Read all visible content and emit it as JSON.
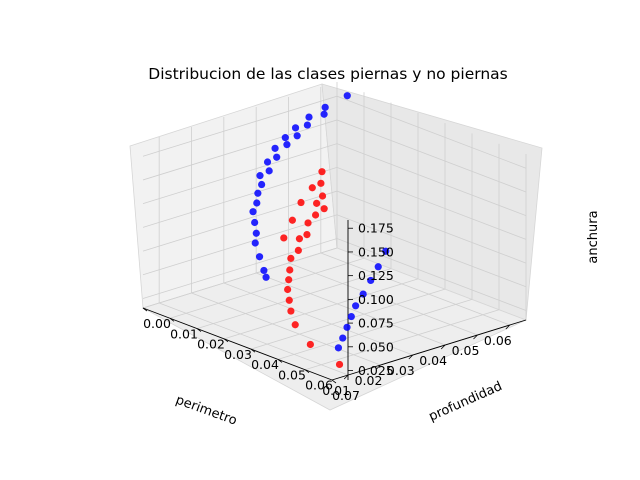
{
  "chart_data": {
    "type": "scatter",
    "projection": "3d",
    "title": "Distribucion de las clases piernas y no piernas",
    "xlabel": "perimetro",
    "ylabel": "profundidad",
    "zlabel": "anchura",
    "xlim": [
      0.005,
      0.065
    ],
    "ylim": [
      0.0,
      0.07
    ],
    "zlim": [
      0.015,
      0.19
    ],
    "xticks": [
      "0.06",
      "0.05",
      "0.04",
      "0.03",
      "0.02",
      "0.01"
    ],
    "yticks": [
      "0.07",
      "0.06",
      "0.05",
      "0.04",
      "0.03",
      "0.02",
      "0.01",
      "0.00"
    ],
    "zticks": [
      "0.025",
      "0.050",
      "0.075",
      "0.100",
      "0.125",
      "0.150",
      "0.175"
    ],
    "grid": true,
    "series": [
      {
        "color": "#0000ff",
        "points": [
          [
            0.064,
            0.005,
            0.182
          ],
          [
            0.058,
            0.004,
            0.175
          ],
          [
            0.056,
            0.006,
            0.172
          ],
          [
            0.053,
            0.004,
            0.17
          ],
          [
            0.05,
            0.007,
            0.168
          ],
          [
            0.048,
            0.005,
            0.165
          ],
          [
            0.046,
            0.008,
            0.162
          ],
          [
            0.044,
            0.006,
            0.16
          ],
          [
            0.042,
            0.009,
            0.158
          ],
          [
            0.04,
            0.007,
            0.154
          ],
          [
            0.038,
            0.01,
            0.15
          ],
          [
            0.036,
            0.009,
            0.146
          ],
          [
            0.034,
            0.012,
            0.142
          ],
          [
            0.032,
            0.011,
            0.138
          ],
          [
            0.03,
            0.014,
            0.134
          ],
          [
            0.028,
            0.015,
            0.128
          ],
          [
            0.026,
            0.017,
            0.122
          ],
          [
            0.024,
            0.018,
            0.116
          ],
          [
            0.022,
            0.021,
            0.11
          ],
          [
            0.02,
            0.024,
            0.104
          ],
          [
            0.018,
            0.026,
            0.098
          ],
          [
            0.016,
            0.03,
            0.09
          ],
          [
            0.014,
            0.034,
            0.082
          ],
          [
            0.013,
            0.036,
            0.078
          ],
          [
            0.04,
            0.048,
            0.09
          ],
          [
            0.036,
            0.05,
            0.08
          ],
          [
            0.032,
            0.052,
            0.072
          ],
          [
            0.028,
            0.054,
            0.064
          ],
          [
            0.024,
            0.056,
            0.058
          ],
          [
            0.021,
            0.058,
            0.052
          ],
          [
            0.018,
            0.06,
            0.046
          ],
          [
            0.015,
            0.062,
            0.04
          ],
          [
            0.012,
            0.064,
            0.035
          ]
        ]
      },
      {
        "color": "#ff0000",
        "points": [
          [
            0.052,
            0.01,
            0.12
          ],
          [
            0.05,
            0.012,
            0.112
          ],
          [
            0.048,
            0.015,
            0.104
          ],
          [
            0.046,
            0.018,
            0.096
          ],
          [
            0.044,
            0.016,
            0.118
          ],
          [
            0.042,
            0.02,
            0.108
          ],
          [
            0.04,
            0.022,
            0.1
          ],
          [
            0.038,
            0.019,
            0.112
          ],
          [
            0.036,
            0.024,
            0.098
          ],
          [
            0.034,
            0.026,
            0.09
          ],
          [
            0.032,
            0.023,
            0.104
          ],
          [
            0.03,
            0.028,
            0.092
          ],
          [
            0.028,
            0.03,
            0.084
          ],
          [
            0.026,
            0.027,
            0.096
          ],
          [
            0.024,
            0.032,
            0.082
          ],
          [
            0.022,
            0.034,
            0.074
          ],
          [
            0.02,
            0.036,
            0.068
          ],
          [
            0.018,
            0.038,
            0.062
          ],
          [
            0.016,
            0.041,
            0.056
          ],
          [
            0.014,
            0.044,
            0.05
          ],
          [
            0.012,
            0.048,
            0.042
          ],
          [
            0.01,
            0.056,
            0.032
          ],
          [
            0.009,
            0.068,
            0.025
          ]
        ]
      }
    ]
  }
}
